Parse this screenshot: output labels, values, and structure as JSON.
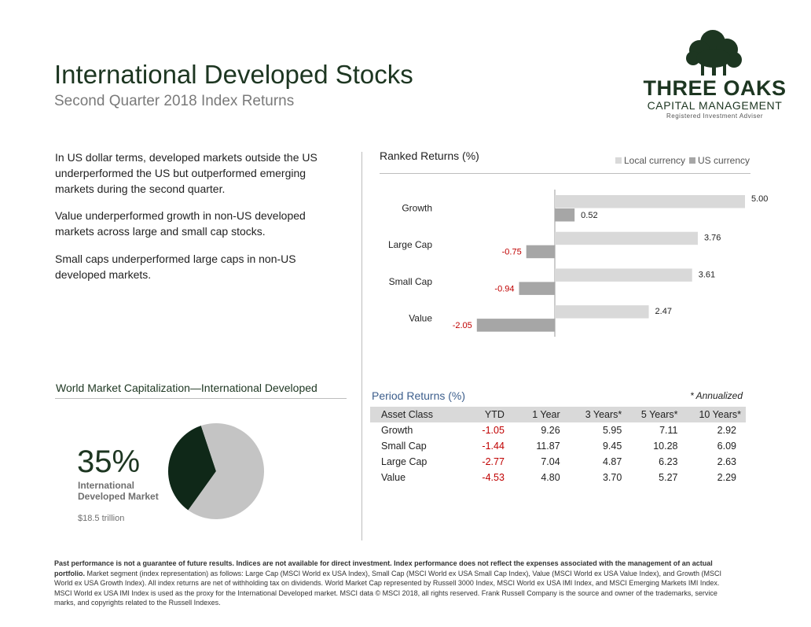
{
  "header": {
    "title": "International Developed Stocks",
    "subtitle": "Second Quarter 2018 Index Returns"
  },
  "logo": {
    "name": "THREE OAKS",
    "line2": "CAPITAL MANAGEMENT",
    "line3": "Registered Investment Adviser",
    "colors": {
      "tree": "#1d3621"
    }
  },
  "bullets": [
    "In US dollar terms, developed markets outside the US underperformed the US but outperformed emerging markets during the second quarter.",
    "Value underperformed growth in non-US developed markets across large and small cap stocks.",
    "Small caps underperformed large caps in non-US developed markets."
  ],
  "colors": {
    "local": "#d9d9d9",
    "us": "#a6a6a6",
    "negative": "#c00000",
    "pie_main": "#0f2818",
    "pie_rest": "#c4c4c4"
  },
  "chart_data": [
    {
      "type": "bar",
      "orientation": "horizontal",
      "title": "Ranked Returns (%)",
      "categories": [
        "Growth",
        "Large Cap",
        "Small Cap",
        "Value"
      ],
      "series": [
        {
          "name": "Local currency",
          "values": [
            5.0,
            3.76,
            3.61,
            2.47
          ]
        },
        {
          "name": "US currency",
          "values": [
            0.52,
            -0.75,
            -0.94,
            -2.05
          ]
        }
      ],
      "value_labels": {
        "local": [
          "5.00",
          "3.76",
          "3.61",
          "2.47"
        ],
        "us": [
          "0.52",
          "-0.75",
          "-0.94",
          "-2.05"
        ]
      },
      "xlim": [
        -2.05,
        5.0
      ],
      "legend": "top-right",
      "grid": false
    },
    {
      "type": "pie",
      "title": "World Market Capitalization—International Developed",
      "slices": [
        {
          "label": "International Developed Market",
          "value": 35
        },
        {
          "label": "",
          "value": 65
        }
      ]
    },
    {
      "type": "table",
      "title": "Period Returns (%)",
      "note": "* Annualized",
      "columns": [
        "Asset Class",
        "YTD",
        "1 Year",
        "3 Years*",
        "5 Years*",
        "10 Years*"
      ],
      "rows": [
        [
          "Growth",
          "-1.05",
          "9.26",
          "5.95",
          "7.11",
          "2.92"
        ],
        [
          "Small Cap",
          "-1.44",
          "11.87",
          "9.45",
          "10.28",
          "6.09"
        ],
        [
          "Large Cap",
          "-2.77",
          "7.04",
          "4.87",
          "6.23",
          "2.63"
        ],
        [
          "Value",
          "-4.53",
          "4.80",
          "3.70",
          "5.27",
          "2.29"
        ]
      ]
    }
  ],
  "wmc": {
    "percent": "35%",
    "label": "International Developed Market",
    "value": "$18.5 trillion"
  },
  "footer": {
    "bold": "Past performance is not a guarantee of future results. Indices are not available for direct investment. Index performance does not reflect the expenses associated with the management of an actual portfolio.",
    "text": " Market segment (index representation) as follows: Large Cap (MSCI World ex USA Index), Small Cap (MSCI World ex USA Small Cap Index), Value (MSCI World ex USA Value Index), and Growth (MSCI World ex USA Growth Index). All index returns are net of withholding tax on dividends. World Market Cap represented by Russell 3000 Index, MSCI World ex USA IMI Index, and MSCI Emerging Markets IMI Index. MSCI World ex USA IMI Index is used as the proxy for the International Developed market. MSCI data © MSCI 2018, all rights reserved. Frank Russell Company is the source and owner of the trademarks, service marks, and copyrights related to the Russell Indexes."
  }
}
